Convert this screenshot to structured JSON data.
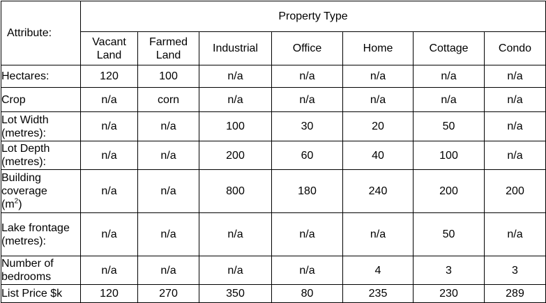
{
  "header": {
    "attribute_label": "Attribute:",
    "group_label": "Property Type",
    "columns": [
      "Vacant Land",
      "Farmed Land",
      "Industrial",
      "Office",
      "Home",
      "Cottage",
      "Condo"
    ]
  },
  "rows": [
    {
      "label": "Hectares:",
      "values": [
        "120",
        "100",
        "n/a",
        "n/a",
        "n/a",
        "n/a",
        "n/a"
      ]
    },
    {
      "label": "Crop",
      "values": [
        "n/a",
        "corn",
        "n/a",
        "n/a",
        "n/a",
        "n/a",
        "n/a"
      ]
    },
    {
      "label": "Lot Width (metres):",
      "values": [
        "n/a",
        "n/a",
        "100",
        "30",
        "20",
        "50",
        "n/a"
      ]
    },
    {
      "label": "Lot Depth (metres):",
      "values": [
        "n/a",
        "n/a",
        "200",
        "60",
        "40",
        "100",
        "n/a"
      ]
    },
    {
      "label": "Building coverage (m2)",
      "values": [
        "n/a",
        "n/a",
        "800",
        "180",
        "240",
        "200",
        "200"
      ]
    },
    {
      "label": "Lake frontage (metres):",
      "values": [
        "n/a",
        "n/a",
        "n/a",
        "n/a",
        "n/a",
        "50",
        "n/a"
      ]
    },
    {
      "label": "Number of bedrooms",
      "values": [
        "n/a",
        "n/a",
        "n/a",
        "n/a",
        "4",
        "3",
        "3"
      ]
    },
    {
      "label": "List Price $k",
      "values": [
        "120",
        "270",
        "350",
        "80",
        "235",
        "230",
        "289"
      ]
    }
  ]
}
